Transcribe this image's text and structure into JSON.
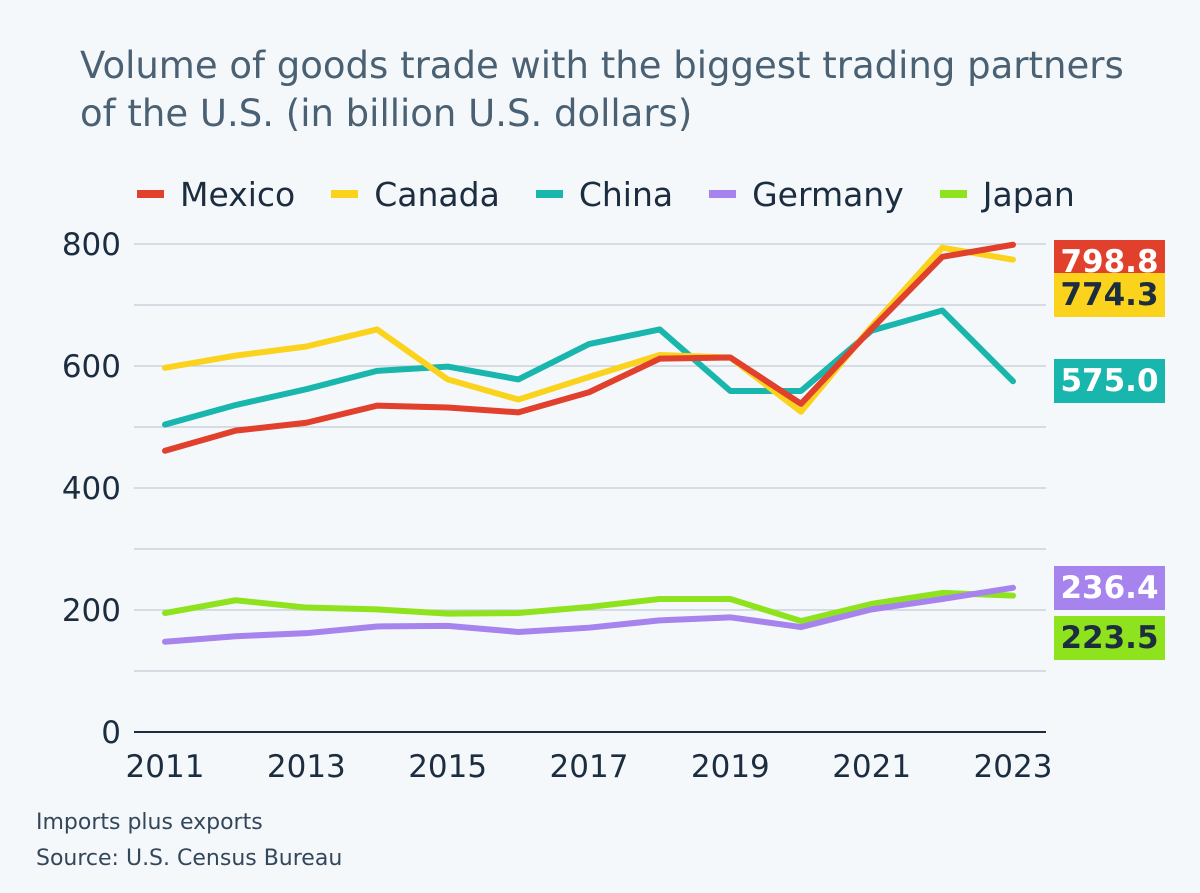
{
  "title": "Volume of goods trade with the biggest trading partners of the U.S. (in billion U.S. dollars)",
  "footnotes": {
    "note": "Imports plus exports",
    "source": "Source: U.S. Census Bureau"
  },
  "chart_data": {
    "type": "line",
    "title": "Volume of goods trade with the biggest trading partners of the U.S. (in billion U.S. dollars)",
    "xlabel": "",
    "ylabel": "",
    "x": [
      2011,
      2012,
      2013,
      2014,
      2015,
      2016,
      2017,
      2018,
      2019,
      2020,
      2021,
      2022,
      2023
    ],
    "x_tick_labels": [
      "2011",
      "2013",
      "2015",
      "2017",
      "2019",
      "2021",
      "2023"
    ],
    "ylim": [
      0,
      800
    ],
    "y_tick_labels": [
      "0",
      "200",
      "400",
      "600",
      "800"
    ],
    "grid": true,
    "legend_position": "top",
    "series": [
      {
        "name": "Mexico",
        "color": "#e0402c",
        "values": [
          461,
          494,
          507,
          535,
          532,
          524,
          557,
          612,
          614,
          538,
          661,
          779,
          798.8
        ],
        "end_label": "798.8",
        "label_text_color": "#ffffff"
      },
      {
        "name": "Canada",
        "color": "#fbd21c",
        "values": [
          597,
          617,
          632,
          660,
          578,
          545,
          582,
          618,
          614,
          525,
          665,
          794,
          774.3
        ],
        "end_label": "774.3",
        "label_text_color": "#1c2d40"
      },
      {
        "name": "China",
        "color": "#19b6ad",
        "values": [
          504,
          536,
          562,
          592,
          599,
          578,
          636,
          660,
          559,
          559,
          658,
          691,
          575.0
        ],
        "end_label": "575.0",
        "label_text_color": "#ffffff"
      },
      {
        "name": "Germany",
        "color": "#a784ed",
        "values": [
          148,
          157,
          162,
          173,
          174,
          164,
          171,
          183,
          188,
          172,
          201,
          218,
          236.4
        ],
        "end_label": "236.4",
        "label_text_color": "#ffffff"
      },
      {
        "name": "Japan",
        "color": "#8fe31e",
        "values": [
          195,
          216,
          204,
          201,
          194,
          195,
          205,
          218,
          218,
          182,
          210,
          228,
          223.5
        ],
        "end_label": "223.5",
        "label_text_color": "#1c2d40"
      }
    ]
  }
}
